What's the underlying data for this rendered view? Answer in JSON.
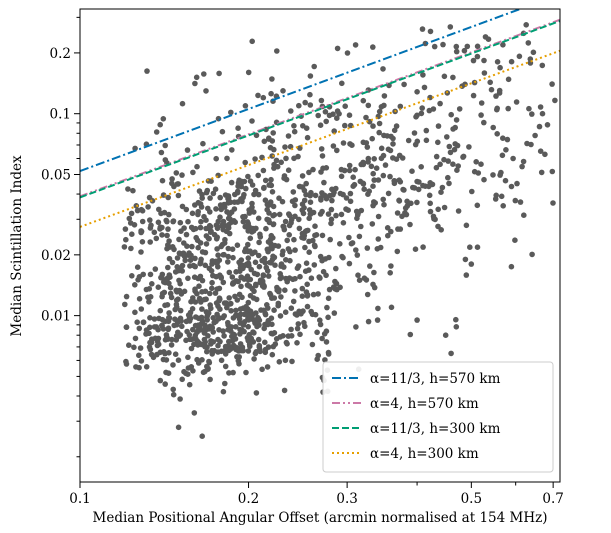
{
  "chart_data": {
    "type": "scatter",
    "xlabel": "Median Positional Angular Offset (arcmin normalised at 154 MHz)",
    "ylabel": "Median Scintillation Index",
    "x_scale": "log",
    "y_scale": "log",
    "xlim": [
      0.1,
      0.72
    ],
    "ylim": [
      0.0015,
      0.33
    ],
    "x_ticks": [
      {
        "value": 0.1,
        "label": "0.1"
      },
      {
        "value": 0.2,
        "label": "0.2"
      },
      {
        "value": 0.3,
        "label": "0.3"
      },
      {
        "value": 0.5,
        "label": "0.5"
      },
      {
        "value": 0.7,
        "label": "0.7"
      }
    ],
    "x_minor_ticks": [
      0.4,
      0.6
    ],
    "y_ticks": [
      {
        "value": 0.01,
        "label": "0.01"
      },
      {
        "value": 0.02,
        "label": "0.02"
      },
      {
        "value": 0.05,
        "label": "0.05"
      },
      {
        "value": 0.1,
        "label": "0.1"
      },
      {
        "value": 0.2,
        "label": "0.2"
      }
    ],
    "y_minor_ticks": [
      0.002,
      0.003,
      0.004,
      0.005,
      0.006,
      0.007,
      0.008,
      0.009,
      0.03,
      0.04,
      0.06,
      0.07,
      0.08,
      0.09,
      0.3
    ],
    "grid": false,
    "legend_position": "lower-right",
    "scatter_color": "#5a5a5a",
    "point_count": 1500,
    "lines": [
      {
        "name": "α=11/3, h=570 km",
        "color": "#0072b2",
        "style": "dashdot",
        "x": [
          0.1,
          0.72
        ],
        "y": [
          0.052,
          0.39
        ]
      },
      {
        "name": "α=4, h=570 km",
        "color": "#cc79a7",
        "style": "dashdotdot",
        "x": [
          0.1,
          0.72
        ],
        "y": [
          0.039,
          0.292
        ]
      },
      {
        "name": "α=11/3, h=300 km",
        "color": "#009e73",
        "style": "dashed",
        "x": [
          0.1,
          0.72
        ],
        "y": [
          0.0385,
          0.288
        ]
      },
      {
        "name": "α=4, h=300 km",
        "color": "#e69f00",
        "style": "dotted",
        "x": [
          0.1,
          0.72
        ],
        "y": [
          0.0275,
          0.205
        ]
      }
    ],
    "clusters": [
      {
        "x": 0.175,
        "y": 0.0085,
        "sx": 0.11,
        "sy": 0.13,
        "n": 420
      },
      {
        "x": 0.18,
        "y": 0.021,
        "sx": 0.12,
        "sy": 0.22,
        "n": 520
      },
      {
        "x": 0.25,
        "y": 0.04,
        "sx": 0.14,
        "sy": 0.25,
        "n": 260
      },
      {
        "x": 0.36,
        "y": 0.06,
        "sx": 0.18,
        "sy": 0.26,
        "n": 200
      },
      {
        "x": 0.52,
        "y": 0.12,
        "sx": 0.14,
        "sy": 0.25,
        "n": 100
      }
    ],
    "sample_points": [
      [
        0.43,
        0.215
      ],
      [
        0.445,
        0.22
      ],
      [
        0.47,
        0.215
      ],
      [
        0.53,
        0.24
      ],
      [
        0.62,
        0.25
      ],
      [
        0.15,
        0.0028
      ],
      [
        0.16,
        0.0033
      ],
      [
        0.4,
        0.0095
      ],
      [
        0.45,
        0.008
      ],
      [
        0.47,
        0.0088
      ],
      [
        0.46,
        0.0065
      ],
      [
        0.49,
        0.028
      ],
      [
        0.5,
        0.018
      ],
      [
        0.57,
        0.035
      ],
      [
        0.62,
        0.058
      ],
      [
        0.67,
        0.1
      ],
      [
        0.65,
        0.078
      ],
      [
        0.36,
        0.011
      ],
      [
        0.34,
        0.0095
      ],
      [
        0.39,
        0.036
      ]
    ]
  }
}
